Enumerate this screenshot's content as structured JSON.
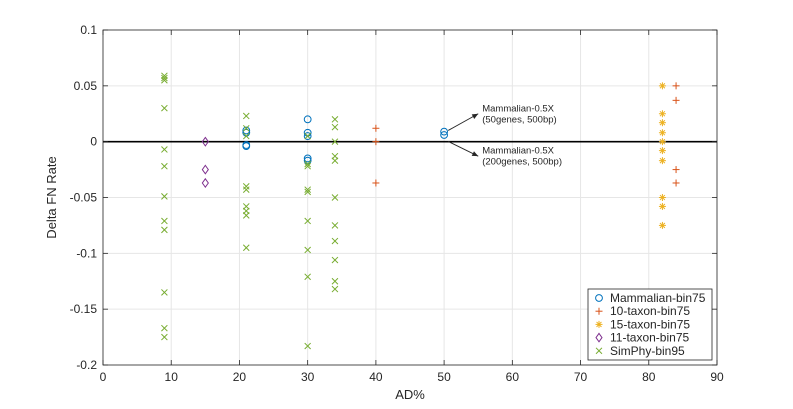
{
  "chart_data": {
    "type": "scatter",
    "xlabel": "AD%",
    "ylabel": "Delta FN Rate",
    "xlim": [
      0,
      90
    ],
    "ylim": [
      -0.2,
      0.1
    ],
    "x_ticks": [
      0,
      10,
      20,
      30,
      40,
      50,
      60,
      70,
      80,
      90
    ],
    "y_ticks": [
      -0.2,
      -0.15,
      -0.1,
      -0.05,
      0,
      0.05,
      0.1
    ],
    "x_tick_labels": [
      "0",
      "10",
      "20",
      "30",
      "40",
      "50",
      "60",
      "70",
      "80",
      "90"
    ],
    "y_tick_labels": [
      "-0.2",
      "-0.15",
      "-0.1",
      "-0.05",
      "0",
      "0.05",
      "0.1"
    ],
    "grid": true,
    "zero_line": true,
    "legend_position": "bottom-right",
    "series": [
      {
        "name": "Mammalian-bin75",
        "marker": "circle",
        "color": "#0072BD",
        "points": [
          [
            21,
            0.01
          ],
          [
            21,
            0.008
          ],
          [
            21,
            -0.003
          ],
          [
            21,
            -0.004
          ],
          [
            30,
            0.02
          ],
          [
            30,
            0.008
          ],
          [
            30,
            0.005
          ],
          [
            30,
            -0.015
          ],
          [
            30,
            -0.017
          ],
          [
            50,
            0.009
          ],
          [
            50,
            0.006
          ]
        ]
      },
      {
        "name": "10-taxon-bin75",
        "marker": "plus",
        "color": "#D95319",
        "points": [
          [
            40,
            0.012
          ],
          [
            40,
            0.0
          ],
          [
            40,
            -0.037
          ],
          [
            84,
            0.05
          ],
          [
            84,
            0.037
          ],
          [
            84,
            -0.025
          ],
          [
            84,
            -0.037
          ]
        ]
      },
      {
        "name": "15-taxon-bin75",
        "marker": "asterisk",
        "color": "#EDB120",
        "points": [
          [
            82,
            0.05
          ],
          [
            82,
            0.025
          ],
          [
            82,
            0.017
          ],
          [
            82,
            0.008
          ],
          [
            82,
            0.0
          ],
          [
            82,
            -0.008
          ],
          [
            82,
            -0.017
          ],
          [
            82,
            -0.05
          ],
          [
            82,
            -0.058
          ],
          [
            82,
            -0.075
          ]
        ]
      },
      {
        "name": "11-taxon-bin75",
        "marker": "diamond",
        "color": "#7E2F8E",
        "points": [
          [
            15,
            0.0
          ],
          [
            15,
            -0.025
          ],
          [
            15,
            -0.037
          ]
        ]
      },
      {
        "name": "SimPhy-bin95",
        "marker": "x",
        "color": "#77AC30",
        "points": [
          [
            9,
            0.059
          ],
          [
            9,
            0.057
          ],
          [
            9,
            0.055
          ],
          [
            9,
            0.03
          ],
          [
            9,
            -0.007
          ],
          [
            9,
            -0.022
          ],
          [
            9,
            -0.049
          ],
          [
            9,
            -0.071
          ],
          [
            9,
            -0.079
          ],
          [
            9,
            -0.135
          ],
          [
            9,
            -0.167
          ],
          [
            9,
            -0.175
          ],
          [
            21,
            0.023
          ],
          [
            21,
            0.012
          ],
          [
            21,
            0.005
          ],
          [
            21,
            -0.04
          ],
          [
            21,
            -0.043
          ],
          [
            21,
            -0.058
          ],
          [
            21,
            -0.062
          ],
          [
            21,
            -0.066
          ],
          [
            21,
            -0.095
          ],
          [
            30,
            0.005
          ],
          [
            30,
            -0.02
          ],
          [
            30,
            -0.022
          ],
          [
            30,
            -0.043
          ],
          [
            30,
            -0.045
          ],
          [
            30,
            -0.071
          ],
          [
            30,
            -0.097
          ],
          [
            30,
            -0.121
          ],
          [
            30,
            -0.183
          ],
          [
            34,
            0.02
          ],
          [
            34,
            0.013
          ],
          [
            34,
            0.0
          ],
          [
            34,
            -0.013
          ],
          [
            34,
            -0.017
          ],
          [
            34,
            -0.05
          ],
          [
            34,
            -0.075
          ],
          [
            34,
            -0.089
          ],
          [
            34,
            -0.106
          ],
          [
            34,
            -0.125
          ],
          [
            34,
            -0.132
          ]
        ]
      }
    ],
    "annotations": [
      {
        "lines": [
          "Mammalian-0.5X",
          "(50genes, 500bp)"
        ],
        "from": [
          50,
          0.008
        ],
        "to": [
          55,
          0.025
        ]
      },
      {
        "lines": [
          "Mammalian-0.5X",
          "(200genes, 500bp)"
        ],
        "from": [
          50,
          0.002
        ],
        "to": [
          55,
          -0.013
        ]
      }
    ]
  }
}
